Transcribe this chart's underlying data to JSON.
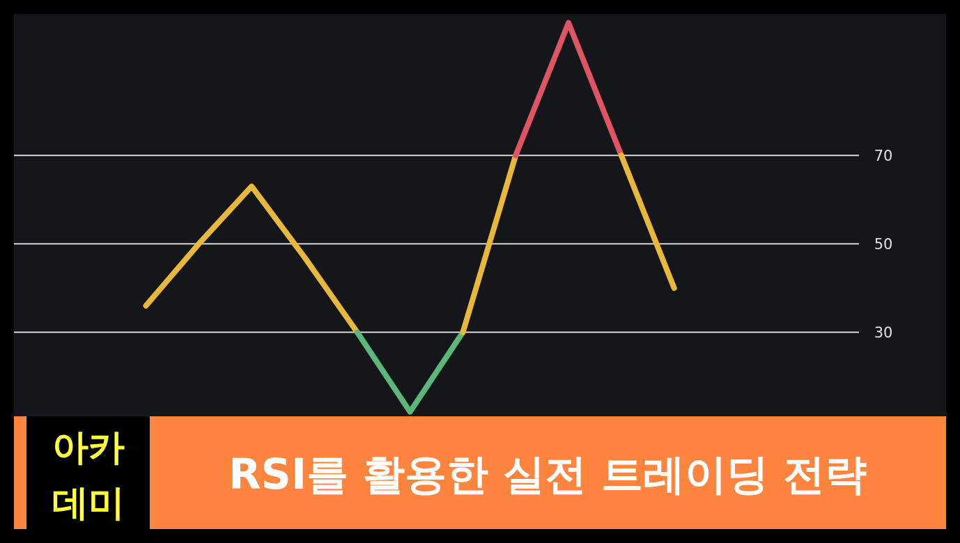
{
  "chart_data": {
    "type": "line",
    "title": "RSI를 활용한 실전 트레이딩 전략",
    "annotations": [
      "아카 데미"
    ],
    "categories": [
      null,
      null,
      null,
      null,
      null,
      null,
      null,
      null,
      null,
      null,
      null,
      null,
      null,
      null,
      null,
      null
    ],
    "ylim": [
      11,
      102
    ],
    "yticks": [
      30,
      50,
      70
    ],
    "grid": "y",
    "tick_labels": "y",
    "series": [
      {
        "color": "#e8b83a",
        "values": [
          null,
          null,
          36,
          50,
          63,
          47,
          30,
          null,
          null,
          null,
          null,
          null,
          null,
          null,
          null,
          null
        ]
      },
      {
        "color": "#5cb87a",
        "values": [
          null,
          null,
          null,
          null,
          null,
          null,
          30,
          12,
          30,
          null,
          null,
          null,
          null,
          null,
          null,
          null
        ]
      },
      {
        "color": "#e8b83a",
        "values": [
          null,
          null,
          null,
          null,
          null,
          null,
          null,
          null,
          30,
          70,
          null,
          null,
          null,
          null,
          null,
          null
        ]
      },
      {
        "color": "#e05563",
        "values": [
          null,
          null,
          null,
          null,
          null,
          null,
          null,
          null,
          null,
          70,
          100,
          70,
          null,
          null,
          null,
          null
        ]
      },
      {
        "color": "#e8b83a",
        "values": [
          null,
          null,
          null,
          null,
          null,
          null,
          null,
          null,
          null,
          null,
          null,
          70,
          40,
          null,
          null,
          null
        ]
      }
    ]
  }
}
